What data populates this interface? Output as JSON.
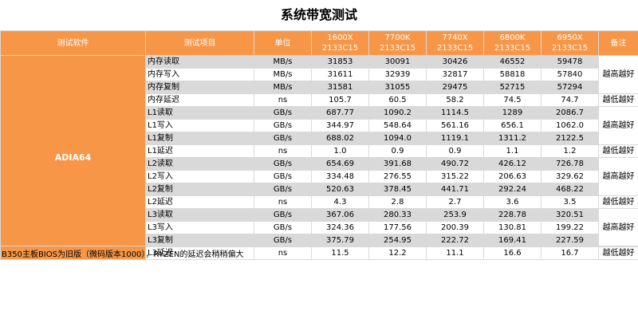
{
  "title": "系统带宽测试",
  "headers": {
    "software": "测试软件",
    "item": "测试项目",
    "unit": "单位",
    "note": "备注",
    "cpus": [
      {
        "name": "1600X",
        "mem": "2133C15"
      },
      {
        "name": "7700K",
        "mem": "2133C15"
      },
      {
        "name": "7740X",
        "mem": "2133C15"
      },
      {
        "name": "6800K",
        "mem": "2133C15"
      },
      {
        "name": "6950X",
        "mem": "2133C15"
      }
    ]
  },
  "software": "ADIA64",
  "rows": [
    {
      "item": "内存读取",
      "unit": "MB/s",
      "values": [
        "31853",
        "30091",
        "30426",
        "46552",
        "59478"
      ]
    },
    {
      "item": "内存写入",
      "unit": "MB/s",
      "values": [
        "31611",
        "32939",
        "32817",
        "58818",
        "57840"
      ]
    },
    {
      "item": "内存复制",
      "unit": "MB/s",
      "values": [
        "31581",
        "31055",
        "29475",
        "52715",
        "57294"
      ]
    },
    {
      "item": "内存延迟",
      "unit": "ns",
      "values": [
        "105.7",
        "60.5",
        "58.2",
        "74.5",
        "74.7"
      ]
    },
    {
      "item": "L1读取",
      "unit": "GB/s",
      "values": [
        "687.77",
        "1090.2",
        "1114.5",
        "1289",
        "2086.7"
      ]
    },
    {
      "item": "L1写入",
      "unit": "GB/s",
      "values": [
        "344.97",
        "548.64",
        "561.16",
        "656.1",
        "1062.0"
      ]
    },
    {
      "item": "L1复制",
      "unit": "GB/s",
      "values": [
        "688.02",
        "1094.0",
        "1119.1",
        "1311.2",
        "2122.5"
      ]
    },
    {
      "item": "L1延迟",
      "unit": "ns",
      "values": [
        "1.0",
        "0.9",
        "0.9",
        "1.1",
        "1.2"
      ]
    },
    {
      "item": "L2读取",
      "unit": "GB/s",
      "values": [
        "654.69",
        "391.68",
        "490.72",
        "426.12",
        "726.78"
      ]
    },
    {
      "item": "L2写入",
      "unit": "GB/s",
      "values": [
        "334.48",
        "276.55",
        "315.22",
        "206.63",
        "329.62"
      ]
    },
    {
      "item": "L2复制",
      "unit": "GB/s",
      "values": [
        "520.63",
        "378.45",
        "441.71",
        "292.24",
        "468.22"
      ]
    },
    {
      "item": "L2延迟",
      "unit": "ns",
      "values": [
        "4.3",
        "2.8",
        "2.7",
        "3.6",
        "3.5"
      ]
    },
    {
      "item": "L3读取",
      "unit": "GB/s",
      "values": [
        "367.06",
        "280.33",
        "253.9",
        "228.78",
        "320.51"
      ]
    },
    {
      "item": "L3写入",
      "unit": "GB/s",
      "values": [
        "324.36",
        "177.56",
        "200.39",
        "130.81",
        "199.22"
      ]
    },
    {
      "item": "L3复制",
      "unit": "GB/s",
      "values": [
        "375.79",
        "254.95",
        "222.72",
        "169.41",
        "227.59"
      ]
    },
    {
      "item": "L3延迟",
      "unit": "ns",
      "values": [
        "11.5",
        "12.2",
        "11.1",
        "16.6",
        "16.7"
      ]
    }
  ],
  "notes": [
    {
      "text": "越高越好",
      "span": 3
    },
    {
      "text": "越低越好",
      "span": 1
    },
    {
      "text": "越高越好",
      "span": 3
    },
    {
      "text": "越低越好",
      "span": 1
    },
    {
      "text": "越高越好",
      "span": 3
    },
    {
      "text": "越低越好",
      "span": 1
    },
    {
      "text": "越高越好",
      "span": 3
    },
    {
      "text": "越低越好",
      "span": 1
    }
  ],
  "footnote": "B350主板BIOS为旧版（微码版本1000），RYZEN的延迟会稍稍偏大",
  "colors": {
    "header": "#f79646",
    "band": "#d9d9d9",
    "grid": "#d9d9d9"
  }
}
